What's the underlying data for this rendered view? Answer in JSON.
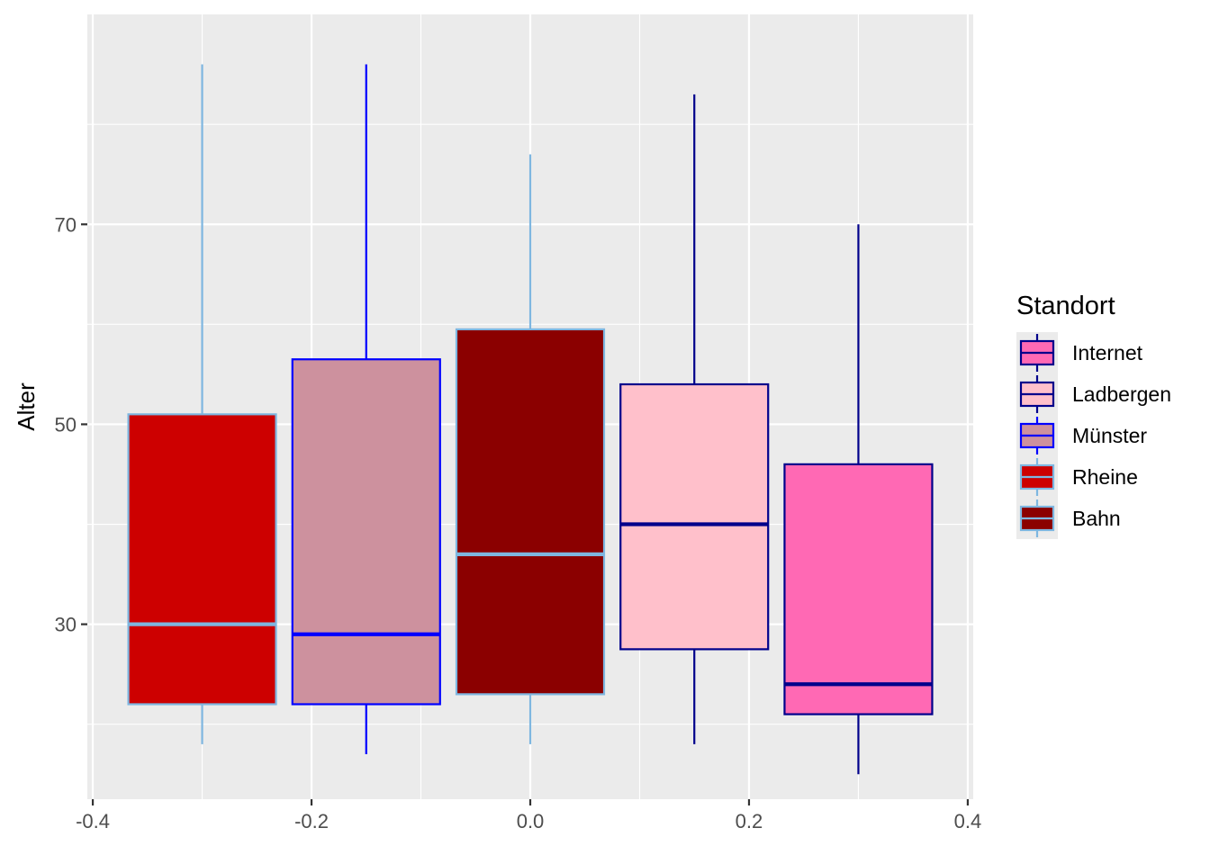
{
  "chart_data": {
    "type": "boxplot",
    "xlabel": "",
    "ylabel": "Alter",
    "xlim": [
      -0.405,
      0.405
    ],
    "ylim": [
      12.5,
      91
    ],
    "x_ticks": [
      -0.4,
      -0.2,
      0.0,
      0.2,
      0.4
    ],
    "x_tick_labels": [
      "-0.4",
      "-0.2",
      "0.0",
      "0.2",
      "0.4"
    ],
    "y_ticks": [
      30,
      50,
      70
    ],
    "y_tick_labels": [
      "30",
      "50",
      "70"
    ],
    "grid": true,
    "panel_background": "#ebebeb",
    "legend": {
      "title": "Standort",
      "position": "right",
      "entries": [
        {
          "label": "Internet",
          "fill": "#ff69b4",
          "outline": "#00008b"
        },
        {
          "label": "Ladbergen",
          "fill": "#ffc0cb",
          "outline": "#00008b"
        },
        {
          "label": "Münster",
          "fill": "#cd919e",
          "outline": "#0000ff"
        },
        {
          "label": "Rheine",
          "fill": "#cd0000",
          "outline": "#7eb6e0"
        },
        {
          "label": "Bahn",
          "fill": "#8b0000",
          "outline": "#7eb6e0"
        }
      ]
    },
    "series": [
      {
        "x": -0.3,
        "width": 0.135,
        "lower_whisker": 18,
        "q1": 22,
        "median": 30,
        "q3": 51,
        "upper_whisker": 86,
        "fill": "#cd0000",
        "outline": "#7eb6e0"
      },
      {
        "x": -0.15,
        "width": 0.135,
        "lower_whisker": 17,
        "q1": 22,
        "median": 29,
        "q3": 56.5,
        "upper_whisker": 86,
        "fill": "#cd919e",
        "outline": "#0000ff"
      },
      {
        "x": 0.0,
        "width": 0.135,
        "lower_whisker": 18,
        "q1": 23,
        "median": 37,
        "q3": 59.5,
        "upper_whisker": 77,
        "fill": "#8b0000",
        "outline": "#7eb6e0"
      },
      {
        "x": 0.15,
        "width": 0.135,
        "lower_whisker": 18,
        "q1": 27.5,
        "median": 40,
        "q3": 54,
        "upper_whisker": 83,
        "fill": "#ffc0cb",
        "outline": "#00008b"
      },
      {
        "x": 0.3,
        "width": 0.135,
        "lower_whisker": 15,
        "q1": 21,
        "median": 24,
        "q3": 46,
        "upper_whisker": 70,
        "fill": "#ff69b4",
        "outline": "#00008b"
      }
    ]
  }
}
